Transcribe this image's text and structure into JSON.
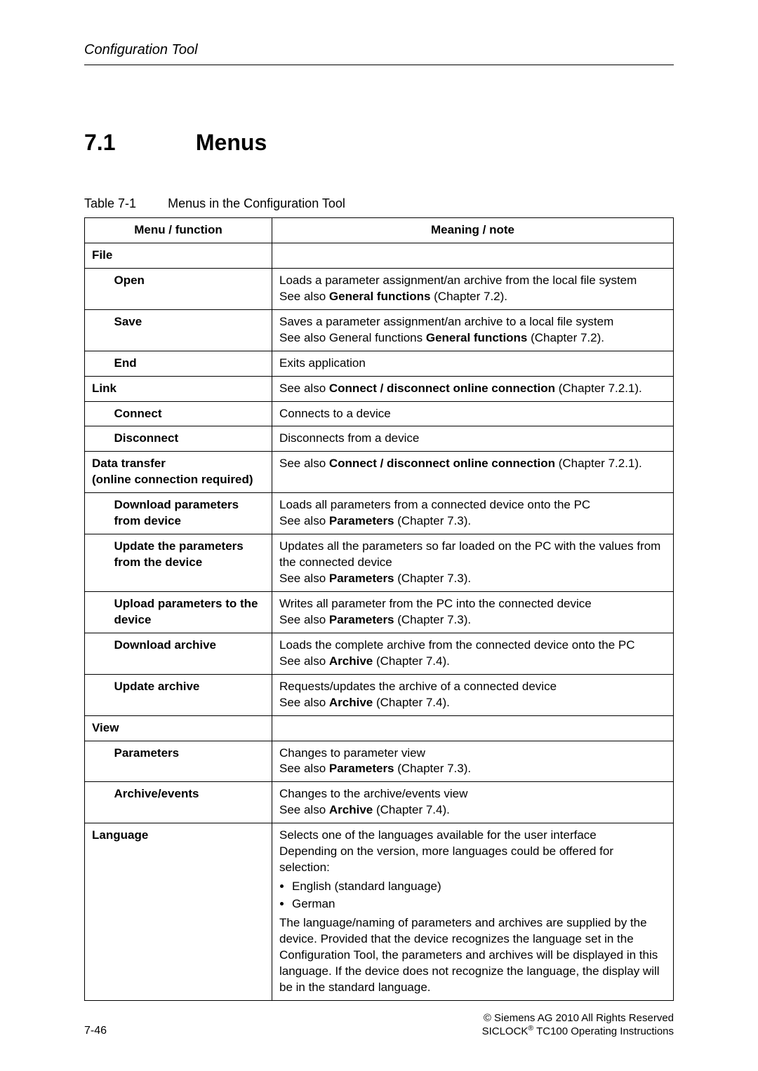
{
  "header": {
    "running": "Configuration Tool"
  },
  "section": {
    "number": "7.1",
    "title": "Menus"
  },
  "caption": {
    "label": "Table 7-1",
    "text": "Menus in the Configuration Tool"
  },
  "table": {
    "head": {
      "menu": "Menu / function",
      "note": "Meaning / note"
    },
    "groups": [
      {
        "id": "file",
        "label": "File",
        "note": "",
        "rows": [
          {
            "func": "Open",
            "note": "Loads a parameter assignment/an archive from the local file system\nSee also <b>General functions</b> (Chapter 7.2)."
          },
          {
            "func": "Save",
            "note": "Saves a parameter assignment/an archive to a local file system\nSee also General functions <b>General functions</b> (Chapter 7.2)."
          },
          {
            "func": "End",
            "note": "Exits application"
          }
        ]
      },
      {
        "id": "link",
        "label": "Link",
        "note": "See also <b>Connect / disconnect online connection</b> (Chapter 7.2.1).",
        "rows": [
          {
            "func": "Connect",
            "note": "Connects to a device"
          },
          {
            "func": "Disconnect",
            "note": "Disconnects from a device"
          }
        ]
      },
      {
        "id": "data",
        "label": "Data transfer\n(online connection required)",
        "note": "See also <b>Connect / disconnect online connection</b> (Chapter 7.2.1).",
        "rows": [
          {
            "func": "Download parameters from device",
            "note": "Loads all parameters from a connected device onto the PC\nSee also <b>Parameters</b> (Chapter 7.3)."
          },
          {
            "func": "Update the parameters from the device",
            "note": "Updates all the parameters so far loaded on the PC with the values from the connected device\nSee also <b>Parameters</b> (Chapter 7.3)."
          },
          {
            "func": "Upload parameters to the device",
            "note": "Writes all parameter from the PC into the connected device\nSee also <b>Parameters</b> (Chapter 7.3)."
          },
          {
            "func": "Download archive",
            "note": "Loads the complete archive from the connected device onto the PC\nSee also <b>Archive</b> (Chapter 7.4)."
          },
          {
            "func": "Update archive",
            "note": "Requests/updates the archive of a connected device\nSee also <b>Archive</b> (Chapter 7.4)."
          }
        ]
      },
      {
        "id": "view",
        "label": "View",
        "note": "",
        "rows": [
          {
            "func": "Parameters",
            "note": "Changes to parameter view\nSee also <b>Parameters</b> (Chapter 7.3)."
          },
          {
            "func": "Archive/events",
            "note": "Changes to the archive/events view\nSee also <b>Archive</b> (Chapter 7.4)."
          }
        ]
      },
      {
        "id": "lang",
        "label": "Language",
        "note_intro1": "Selects one of the languages available for the user interface",
        "note_intro2": "Depending on the version, more languages could be offered for selection:",
        "list": [
          "English (standard language)",
          "German"
        ],
        "note_tail": "The language/naming of parameters and archives are supplied by the device. Provided that the device recognizes the language set in the Configuration Tool, the parameters and archives will be displayed in this language. If the device does not recognize the language, the display will be in the standard language."
      }
    ]
  },
  "footer": {
    "page": "7-46",
    "copy": "©  Siemens AG 2010 All Rights Reserved",
    "product_a": "SICLOCK",
    "product_b": " TC100 Operating Instructions"
  }
}
